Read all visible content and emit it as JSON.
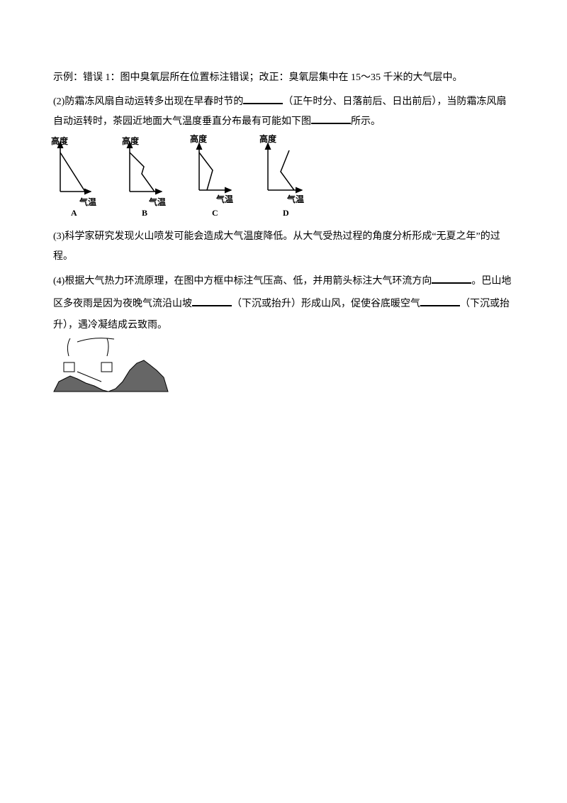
{
  "paragraphs": [
    {
      "lines": [
        {
          "parts": [
            "示例：错误 1：图中臭氧层所在位置标注错误；改正：臭氧层集中在 15～35 千米的大气层中。"
          ]
        }
      ]
    },
    {
      "lines": [
        {
          "parts": [
            "(2)防霜冻风扇自动运转多出现在早春时节的",
            "（正午时分、日落前后、日出前后），当防霜冻风扇"
          ]
        },
        {
          "parts": [
            "自动运转时，茶园近地面大气温度垂直分布最有可能如下图",
            "所示。"
          ]
        }
      ]
    },
    {
      "lines": [
        {
          "parts": [
            "(3)科学家研究发现火山喷发可能会造成大气温度降低。从大气受热过程的角度分析形成“无夏之年”的过"
          ]
        },
        {
          "parts": [
            "程。"
          ]
        }
      ]
    },
    {
      "lines": [
        {
          "parts": [
            "(4)根据大气热力环流原理，在图中方框中标注气压高、低，并用箭头标注大气环流方向",
            "。巴山地"
          ]
        },
        {
          "parts": [
            "区多夜雨是因为夜晚气流沿山坡",
            "（下沉或抬升）形成山风，促使谷底暖空气",
            "（下沉或抬"
          ]
        },
        {
          "parts": [
            "升），遇冷凝结成云致雨。"
          ]
        }
      ]
    }
  ],
  "figure": {
    "graphs": [
      {
        "y_axis": "高度",
        "x_axis": "气温",
        "label": "A"
      },
      {
        "y_axis": "高度",
        "x_axis": "气温",
        "label": "B"
      },
      {
        "y_axis": "高度",
        "x_axis": "气温",
        "label": "C"
      },
      {
        "y_axis": "高度",
        "x_axis": "气温",
        "label": "D"
      }
    ]
  }
}
